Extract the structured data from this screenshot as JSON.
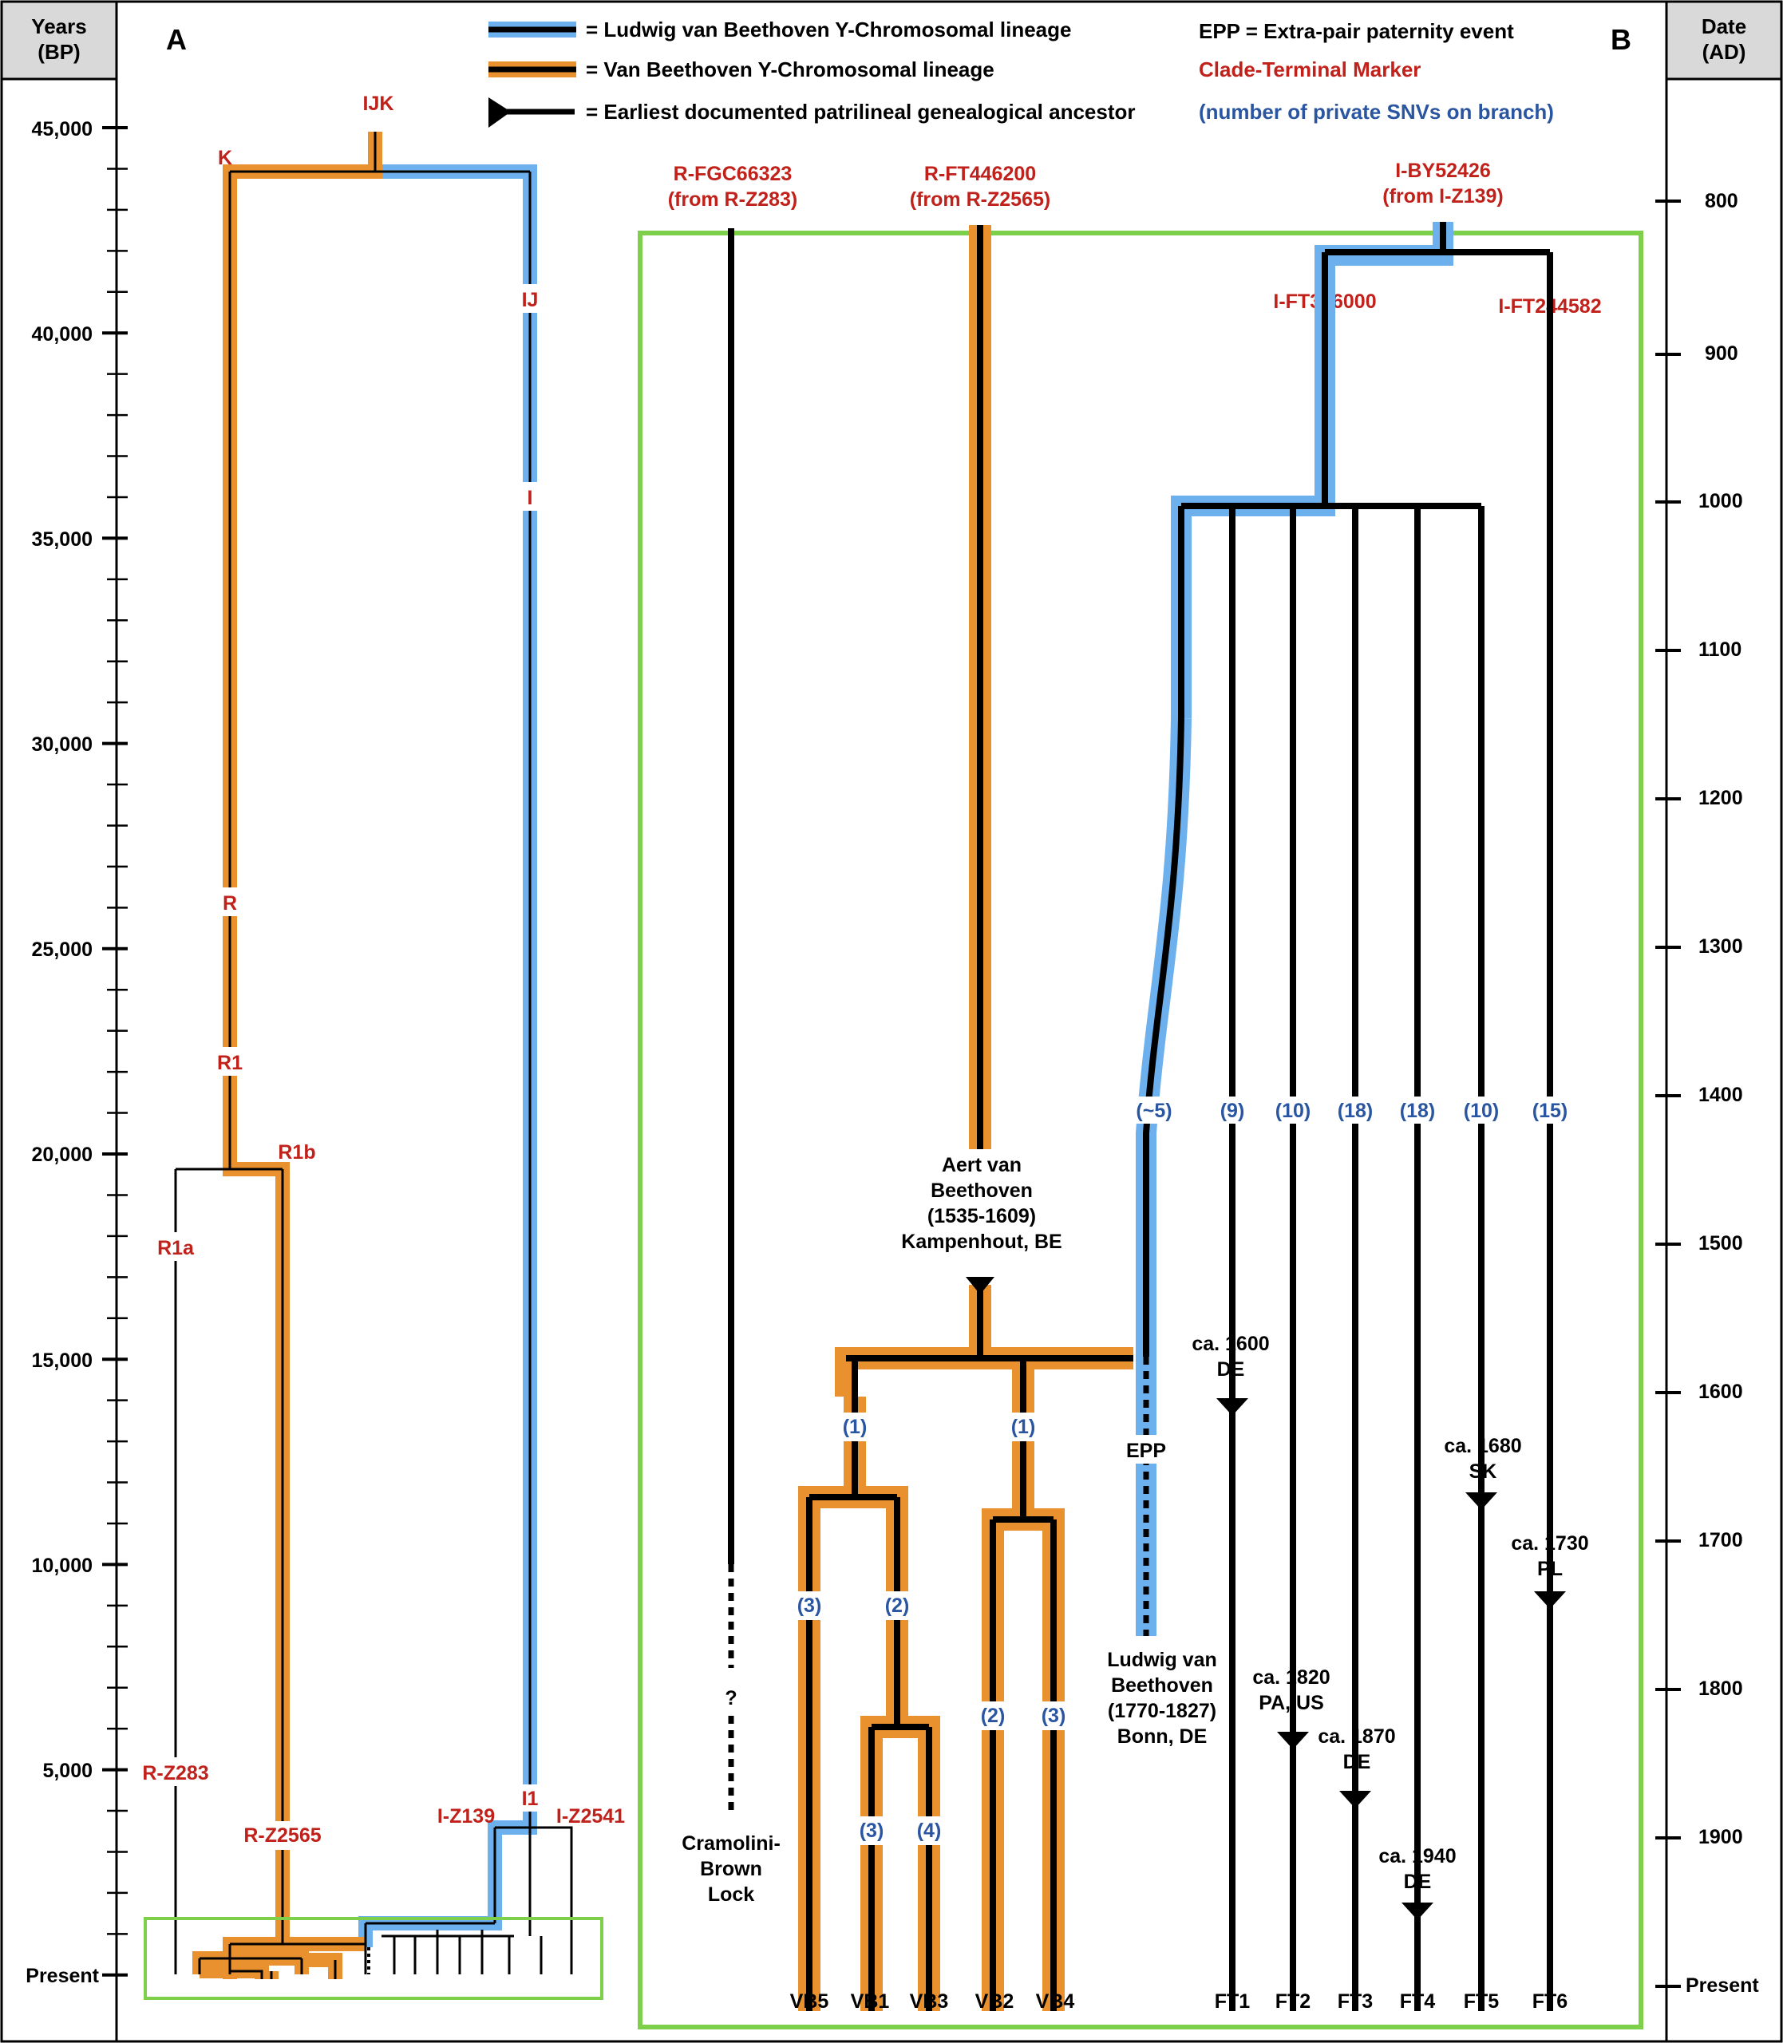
{
  "colors": {
    "ludwig": "#6cb0ee",
    "vanbeethoven": "#e8912e",
    "clade": "#c0211a",
    "snv": "#2a55a0",
    "box": "#7ed04a",
    "header_bg": "#d9d9d9"
  },
  "left_axis": {
    "title": "Years",
    "unit": "(BP)",
    "ticks": [
      "45,000",
      "40,000",
      "35,000",
      "30,000",
      "25,000",
      "20,000",
      "15,000",
      "10,000",
      "5,000",
      "Present"
    ]
  },
  "right_axis": {
    "title": "Date",
    "unit": "(AD)",
    "ticks": [
      "800",
      "900",
      "1000",
      "1100",
      "1200",
      "1300",
      "1400",
      "1500",
      "1600",
      "1700",
      "1800",
      "1900",
      "Present"
    ]
  },
  "panels": {
    "a": "A",
    "b": "B"
  },
  "legend": {
    "ludwig": "= Ludwig van Beethoven Y-Chromosomal lineage",
    "vanbeethoven": "= Van Beethoven Y-Chromosomal lineage",
    "ancestor": "= Earliest documented patrilineal genealogical ancestor",
    "epp": "EPP = Extra-pair paternity event",
    "clade": "Clade-Terminal Marker",
    "snv": "(number of private SNVs on branch)"
  },
  "panel_a": {
    "clades": [
      "IJK",
      "K",
      "IJ",
      "I",
      "R",
      "R1",
      "R1b",
      "R1a",
      "R-Z283",
      "R-Z2565",
      "I-Z139",
      "I1",
      "I-Z2541"
    ]
  },
  "panel_b": {
    "roots": [
      {
        "marker": "R-FGC66323",
        "from": "(from R-Z283)"
      },
      {
        "marker": "R-FT446200",
        "from": "(from R-Z2565)"
      },
      {
        "marker": "I-BY52426",
        "from": "(from I-Z139)"
      }
    ],
    "subclades": [
      "I-FT396000",
      "I-FT244582"
    ],
    "snv_counts": {
      "ludwig": "(~5)",
      "ft1": "(9)",
      "ft2": "(10)",
      "ft3": "(18)",
      "ft4": "(18)",
      "ft5": "(10)",
      "ft6": "(15)",
      "vb_left": "(1)",
      "vb_right": "(1)",
      "vb5": "(3)",
      "vb1_3": "(2)",
      "vb1": "(3)",
      "vb3": "(4)",
      "vb2": "(2)",
      "vb4": "(3)"
    },
    "aert": [
      "Aert van",
      "Beethoven",
      "(1535-1609)",
      "Kampenhout, BE"
    ],
    "ludwig": [
      "Ludwig van",
      "Beethoven",
      "(1770-1827)",
      "Bonn, DE"
    ],
    "epp": "EPP",
    "lock": [
      "Cramolini-",
      "Brown",
      "Lock"
    ],
    "lock_unknown": "?",
    "ancestors": [
      [
        "ca. 1600",
        "DE"
      ],
      [
        "ca. 1820",
        "PA, US"
      ],
      [
        "ca. 1870",
        "DE"
      ],
      [
        "ca. 1940",
        "DE"
      ],
      [
        "ca. 1680",
        "SK"
      ],
      [
        "ca. 1730",
        "PL"
      ]
    ],
    "tips": [
      "VB5",
      "VB1",
      "VB3",
      "VB2",
      "VB4",
      "FT1",
      "FT2",
      "FT3",
      "FT4",
      "FT5",
      "FT6"
    ]
  }
}
